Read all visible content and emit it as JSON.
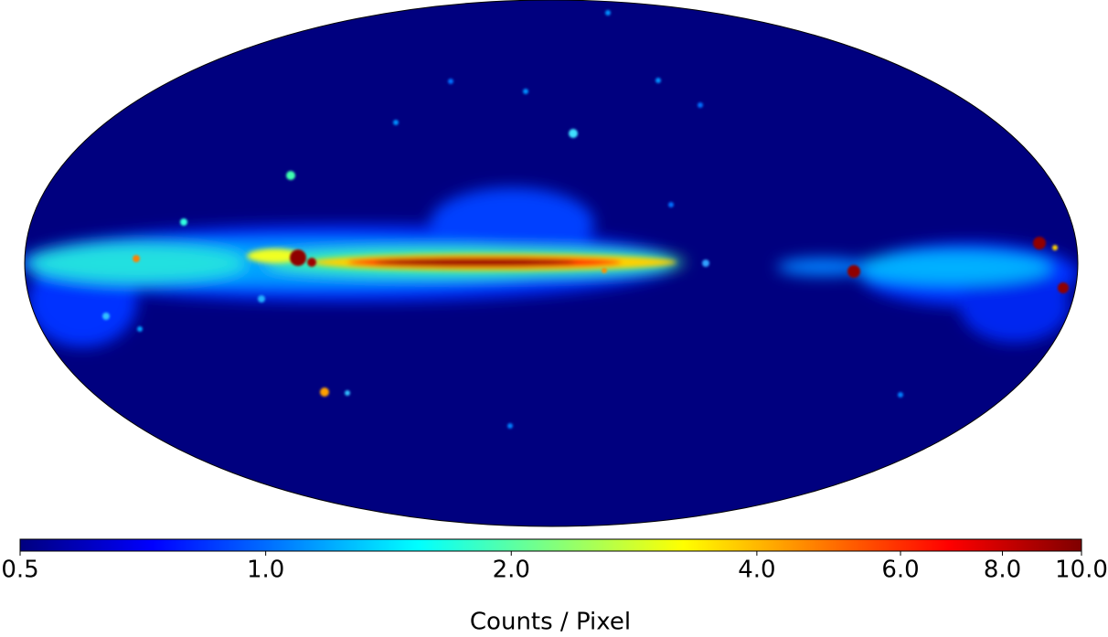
{
  "colorbar": {
    "label": "Counts / Pixel",
    "colormap": "jet",
    "scale": "log",
    "lim": [
      0.5,
      10
    ],
    "ticks": [
      0.5,
      {
        "value": 1,
        "label": "1.0"
      },
      {
        "value": 2,
        "label": "2.0"
      },
      {
        "value": 4,
        "label": "4.0"
      },
      {
        "value": 6,
        "label": "6.0"
      },
      {
        "value": 8,
        "label": "8.0"
      },
      {
        "value": 10,
        "label": "10.0"
      }
    ]
  }
}
